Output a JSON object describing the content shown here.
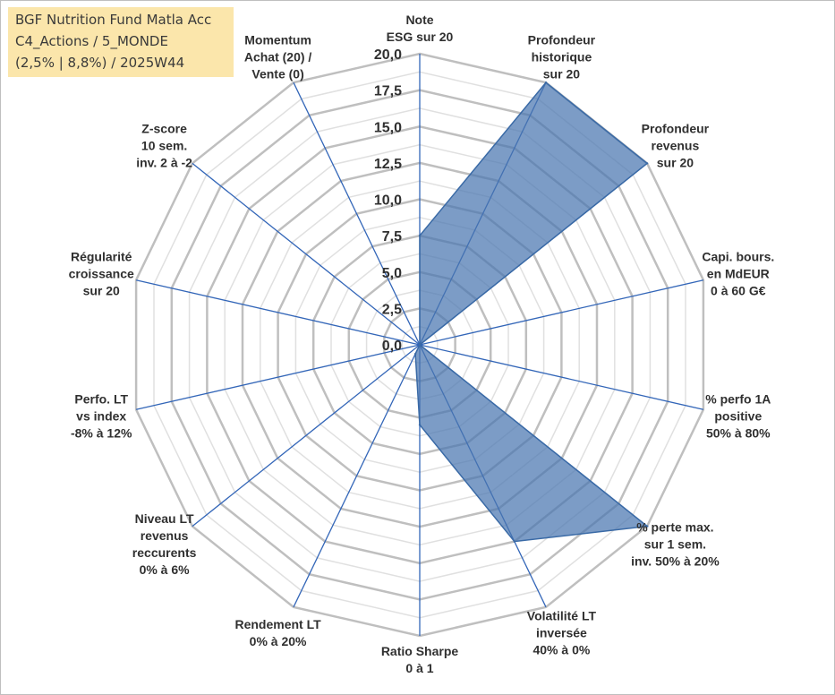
{
  "title": {
    "line1": "BGF Nutrition Fund Matla Acc",
    "line2": "C4_Actions / 5_MONDE",
    "line3": "(2,5% | 8,8%) / 2025W44"
  },
  "colors": {
    "series_fill": "#4a76b0",
    "series_stroke": "#3a6aa6",
    "spoke": "#3366b8",
    "grid_major": "#bfbfbf",
    "grid_minor": "#e0e0e0",
    "title_bg": "#fbe6ab"
  },
  "chart_data": {
    "type": "radar",
    "rmin": 0,
    "rmax": 20,
    "tick_step": 2.5,
    "tick_labels": [
      "0,0",
      "2,5",
      "5,0",
      "7,5",
      "10,0",
      "12,5",
      "15,0",
      "17,5",
      "20,0"
    ],
    "categories": [
      [
        "Note",
        "ESG sur 20"
      ],
      [
        "Profondeur",
        "historique",
        "sur 20"
      ],
      [
        "Profondeur",
        "revenus",
        "sur 20"
      ],
      [
        "Capi. bours.",
        "en MdEUR",
        "0 à 60 G€"
      ],
      [
        "% perfo 1A",
        "positive",
        "50% à 80%"
      ],
      [
        "% perte max.",
        "sur 1 sem.",
        "inv. 50% à 20%"
      ],
      [
        "Volatilité LT",
        "inversée",
        "40% à 0%"
      ],
      [
        "Ratio Sharpe",
        "0 à 1"
      ],
      [
        "Rendement LT",
        "0% à 20%"
      ],
      [
        "Niveau LT",
        "revenus",
        "reccurents",
        "0% à 6%"
      ],
      [
        "Perfo. LT",
        "vs index",
        "-8% à 12%"
      ],
      [
        "Régularité",
        "croissance",
        "sur 20"
      ],
      [
        "Z-score",
        "10 sem.",
        "inv. 2 à -2"
      ],
      [
        "Momentum",
        "Achat (20) /",
        "Vente (0)"
      ]
    ],
    "series": [
      {
        "name": "BGF Nutrition Fund Matla Acc",
        "values": [
          7.5,
          20,
          20,
          0,
          0,
          20,
          15,
          5.5,
          0.7,
          0,
          0,
          0,
          0,
          0
        ]
      }
    ]
  }
}
